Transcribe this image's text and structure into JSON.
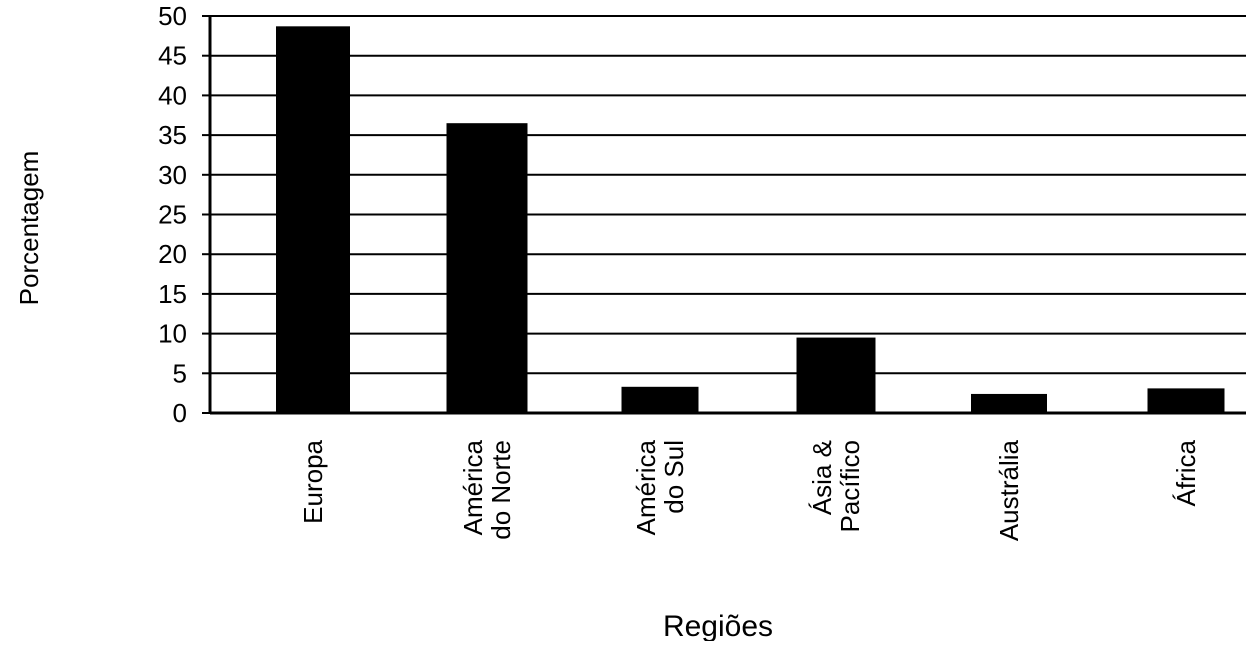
{
  "chart_data": {
    "type": "bar",
    "categories": [
      [
        "Europa"
      ],
      [
        "América",
        "do Norte"
      ],
      [
        "América",
        "do Sul"
      ],
      [
        "Ásia &",
        "Pacífico"
      ],
      [
        "Austrália"
      ],
      [
        "África"
      ]
    ],
    "values": [
      48.7,
      36.5,
      3.3,
      9.5,
      2.4,
      3.1
    ],
    "title": "",
    "xlabel": "Regiões",
    "ylabel": "Porcentagem",
    "ylim": [
      0,
      50
    ],
    "yticks": [
      "0",
      "5",
      "10",
      "15",
      "20",
      "25",
      "30",
      "35",
      "40",
      "45",
      "50"
    ],
    "grid": true,
    "bar_color": "#000000"
  }
}
